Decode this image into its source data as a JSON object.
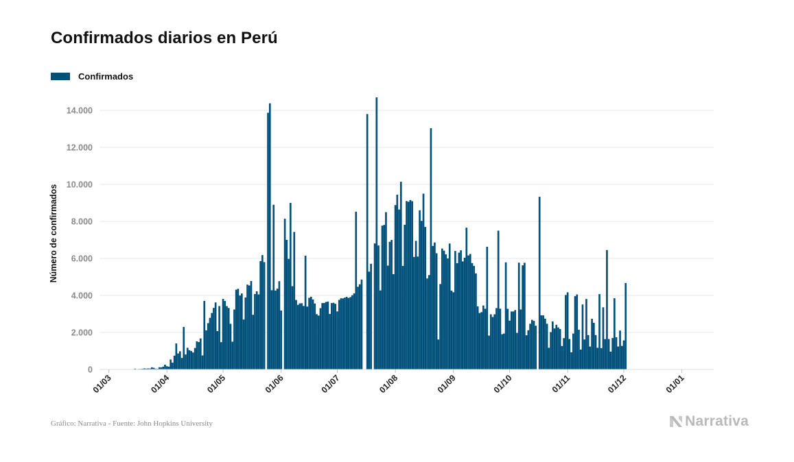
{
  "header": {
    "title": "Confirmados diarios en Perú"
  },
  "legend": {
    "label": "Confirmados"
  },
  "footer": {
    "source": "Gráfico: Narrativa - Fuente: John Hopkins University",
    "brand": "Narrativa"
  },
  "colors": {
    "bar": "#00507a",
    "grid": "#e6e6e6",
    "tick_label": "#8a8a8a",
    "brand": "#b9b9b9"
  },
  "chart_data": {
    "type": "bar",
    "title": "Confirmados diarios en Perú",
    "ylabel": "Número de confirmados",
    "xlabel": "",
    "ylim": [
      0,
      15000
    ],
    "yticks": [
      0,
      2000,
      4000,
      6000,
      8000,
      10000,
      12000,
      14000
    ],
    "ytick_labels": [
      "0",
      "2.000",
      "4.000",
      "6.000",
      "8.000",
      "10.000",
      "12.000",
      "14.000"
    ],
    "xlim": [
      "2020-02-25",
      "2021-01-18"
    ],
    "xticks": [
      {
        "date": "2020-03-01",
        "label": "01/03"
      },
      {
        "date": "2020-04-01",
        "label": "01/04"
      },
      {
        "date": "2020-05-01",
        "label": "01/05"
      },
      {
        "date": "2020-06-01",
        "label": "01/06"
      },
      {
        "date": "2020-07-01",
        "label": "01/07"
      },
      {
        "date": "2020-08-01",
        "label": "01/08"
      },
      {
        "date": "2020-09-01",
        "label": "01/09"
      },
      {
        "date": "2020-10-01",
        "label": "01/10"
      },
      {
        "date": "2020-11-01",
        "label": "01/11"
      },
      {
        "date": "2020-12-01",
        "label": "01/12"
      },
      {
        "date": "2021-01-01",
        "label": "01/01"
      }
    ],
    "legend_position": "top-left",
    "grid": true,
    "series": [
      {
        "name": "Confirmados",
        "start_date": "2020-03-06",
        "values": [
          1,
          5,
          2,
          1,
          4,
          9,
          16,
          7,
          15,
          43,
          9,
          27,
          29,
          40,
          59,
          44,
          56,
          50,
          115,
          89,
          40,
          31,
          120,
          116,
          153,
          260,
          175,
          153,
          540,
          367,
          745,
          1405,
          864,
          984,
          622,
          2300,
          808,
          1173,
          1040,
          995,
          918,
          1162,
          1521,
          1481,
          1680,
          758,
          3704,
          2112,
          2502,
          2789,
          3053,
          3328,
          3620,
          2073,
          3426,
          1475,
          3813,
          3700,
          3423,
          3322,
          2468,
          1501,
          3242,
          4310,
          4359,
          3996,
          4107,
          2697,
          3891,
          4584,
          4538,
          4776,
          2954,
          4075,
          4223,
          4056,
          5857,
          6179,
          5800,
          0,
          13870,
          14380,
          4282,
          8900,
          4264,
          4366,
          4771,
          3185,
          0,
          8145,
          7000,
          5973,
          9000,
          4500,
          7430,
          3756,
          3492,
          3572,
          3580,
          3431,
          6146,
          3398,
          3873,
          3930,
          3781,
          3565,
          2990,
          2912,
          3313,
          3585,
          3591,
          3648,
          3670,
          3002,
          3589,
          3603,
          3547,
          3136,
          3760,
          3845,
          3840,
          3883,
          3924,
          3866,
          3911,
          4010,
          4110,
          8526,
          4468,
          4600,
          4860,
          0,
          0,
          13800,
          5286,
          5712,
          0,
          6809,
          14700,
          6700,
          4271,
          7770,
          7809,
          8500,
          5611,
          6900,
          7000,
          5149,
          8881,
          9443,
          8641,
          10143,
          5597,
          7819,
          9100,
          9059,
          9156,
          9093,
          6080,
          6950,
          6100,
          8600,
          8029,
          9500,
          7700,
          4917,
          5100,
          13036,
          6674,
          6861,
          6279,
          1619,
          4615,
          6533,
          6420,
          6219,
          5999,
          6806,
          4259,
          4173,
          6403,
          5743,
          6312,
          6440,
          5837,
          6040,
          7660,
          6160,
          6243,
          5750,
          5600,
          5190,
          3411,
          3050,
          3100,
          3457,
          3280,
          6630,
          1830,
          2981,
          2835,
          2981,
          3316,
          7500,
          3285,
          1904,
          1940,
          5786,
          3279,
          2640,
          3133,
          3133,
          3211,
          1976,
          5770,
          3239,
          5626,
          5766,
          1848,
          2119,
          2470,
          2683,
          2626,
          2366,
          0,
          9330,
          2923,
          2923,
          2746,
          2470,
          1170,
          2020,
          2595,
          2217,
          2413,
          2271,
          2183,
          1267,
          1694,
          4024,
          4168,
          1646,
          929,
          1940,
          3959,
          4052,
          2147,
          1074,
          3511,
          1620,
          3807,
          1857,
          1237,
          2739,
          2520,
          1861,
          1172,
          4072,
          1154,
          3358,
          1640,
          6453,
          1644,
          964,
          1700,
          3847,
          1744,
          1240,
          2103,
          1274,
          1571,
          4670
        ]
      }
    ]
  }
}
